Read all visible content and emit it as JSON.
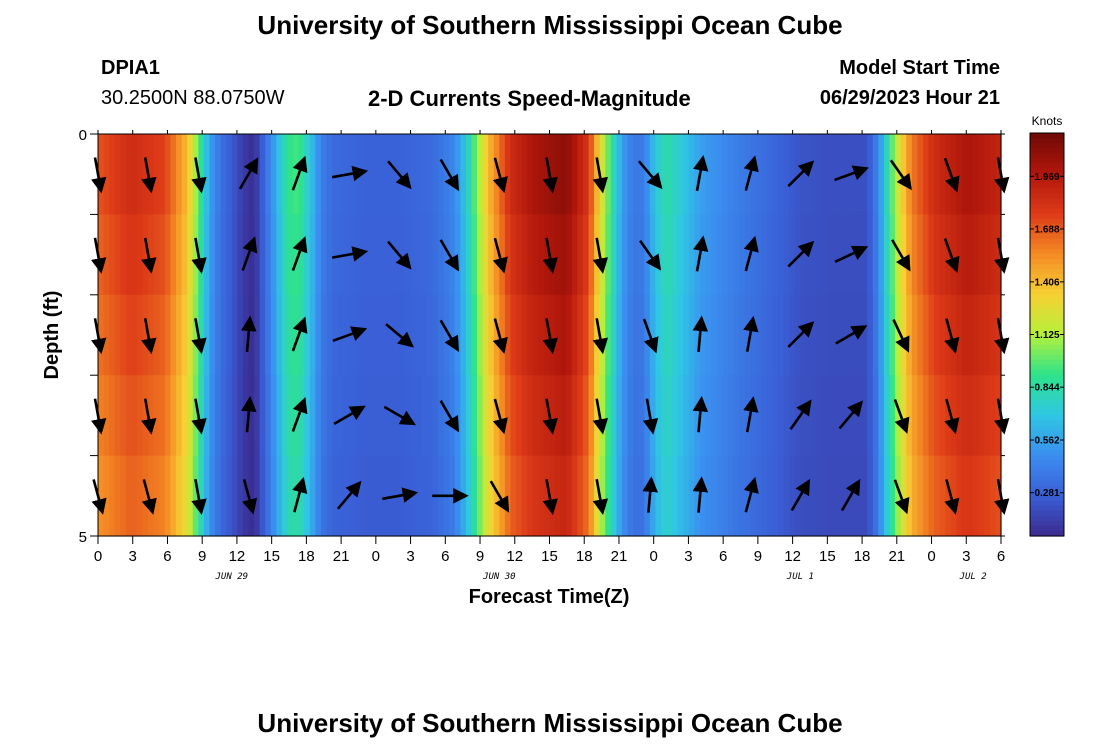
{
  "header": {
    "title": "University of Southern Mississippi Ocean Cube",
    "station": "DPIA1",
    "coords": "30.2500N  88.0750W",
    "plot_title": "2-D Currents Speed-Magnitude",
    "model_label": "Model Start Time",
    "model_time": "06/29/2023 Hour 21"
  },
  "footer": {
    "title": "University of Southern Mississippi Ocean Cube"
  },
  "colors": {
    "colormap": [
      "#3b2a8f",
      "#3a5fd6",
      "#3b8ef0",
      "#2fc7e4",
      "#2ee38a",
      "#b6f03a",
      "#f7d033",
      "#f48a24",
      "#dd3a18",
      "#b0160b",
      "#6e0a06"
    ],
    "arrow": "#000000",
    "background": "#ffffff"
  },
  "chart_data": {
    "type": "heatmap",
    "xlabel": "Forecast Time(Z)",
    "ylabel": "Depth (ft)",
    "x_range_hours": [
      0,
      81
    ],
    "y_range": [
      0,
      5
    ],
    "x_ticks": [
      "0",
      "3",
      "6",
      "9",
      "12",
      "15",
      "18",
      "21",
      "0",
      "3",
      "6",
      "9",
      "12",
      "15",
      "18",
      "21",
      "0",
      "3",
      "6",
      "9",
      "12",
      "15",
      "18",
      "21",
      "0",
      "3",
      "6"
    ],
    "y_tick_labels": [
      "0",
      "5"
    ],
    "date_labels": [
      {
        "text": "JUN 29",
        "hour": 12
      },
      {
        "text": "JUN 30",
        "hour": 36
      },
      {
        "text": "JUL 1",
        "hour": 63
      },
      {
        "text": "JUL 2",
        "hour": 78.5
      }
    ],
    "colorbar": {
      "label": "Knots",
      "ticks": [
        "1.969",
        "1.688",
        "1.406",
        "1.125",
        "0.844",
        "0.562",
        "0.281"
      ],
      "tick_values": [
        1.969,
        1.688,
        1.406,
        1.125,
        0.844,
        0.562,
        0.281
      ],
      "range": [
        0.05,
        2.2
      ]
    },
    "speed_profile": {
      "hours": [
        0,
        3,
        6,
        8,
        9,
        10,
        11,
        12,
        13,
        14,
        16,
        17,
        18,
        19,
        20,
        21,
        24,
        27,
        30,
        32,
        33,
        34,
        35,
        37,
        39,
        42,
        44,
        45,
        46,
        47,
        48,
        49,
        50,
        51,
        52,
        54,
        57,
        60,
        63,
        66,
        69,
        70,
        71,
        72,
        73,
        75,
        78,
        81
      ],
      "knots": [
        1.7,
        1.85,
        1.75,
        1.4,
        1.0,
        0.55,
        0.35,
        0.25,
        0.12,
        0.06,
        0.6,
        0.9,
        0.95,
        0.7,
        0.42,
        0.32,
        0.28,
        0.28,
        0.32,
        0.45,
        0.7,
        1.05,
        1.4,
        1.85,
        2.0,
        2.1,
        1.8,
        1.3,
        0.9,
        0.55,
        0.38,
        0.4,
        0.7,
        0.85,
        0.75,
        0.55,
        0.42,
        0.32,
        0.22,
        0.2,
        0.2,
        0.45,
        0.9,
        1.3,
        1.6,
        1.85,
        2.0,
        1.9
      ]
    },
    "layers": 5,
    "vectors": {
      "hours": [
        0,
        4.5,
        9,
        13.5,
        18,
        22.5,
        27,
        31.5,
        36,
        40.5,
        45,
        49.5,
        54,
        58.5,
        63,
        67.5,
        72,
        76.5,
        81
      ],
      "angles_deg": [
        [
          170,
          170,
          170,
          30,
          20,
          80,
          140,
          150,
          165,
          170,
          170,
          140,
          10,
          15,
          45,
          70,
          145,
          160,
          170
        ],
        [
          170,
          170,
          170,
          20,
          20,
          80,
          140,
          150,
          165,
          170,
          170,
          145,
          10,
          15,
          45,
          65,
          150,
          160,
          170
        ],
        [
          170,
          170,
          170,
          5,
          20,
          70,
          130,
          150,
          165,
          170,
          170,
          160,
          5,
          10,
          45,
          60,
          155,
          165,
          170
        ],
        [
          170,
          170,
          170,
          5,
          20,
          60,
          120,
          150,
          165,
          170,
          170,
          170,
          5,
          10,
          35,
          40,
          160,
          165,
          170
        ],
        [
          165,
          165,
          170,
          165,
          15,
          40,
          80,
          90,
          150,
          170,
          170,
          5,
          5,
          15,
          30,
          30,
          160,
          165,
          170
        ]
      ]
    }
  }
}
